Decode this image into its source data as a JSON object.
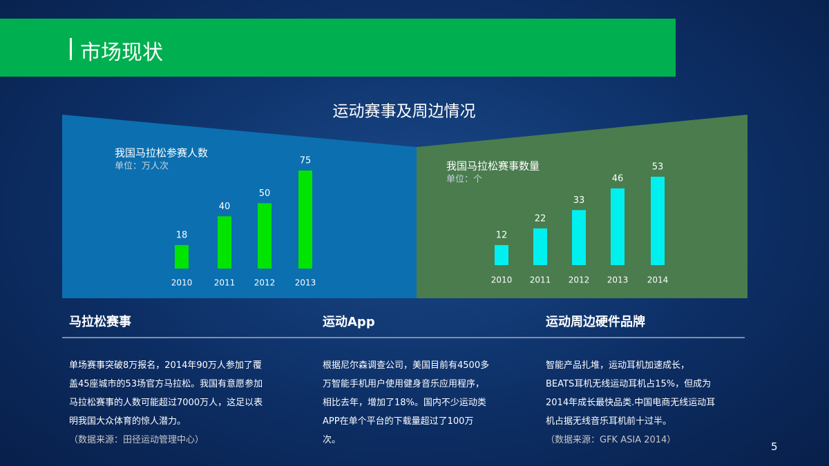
{
  "header": {
    "title": "市场现状"
  },
  "figure_title": "运动赛事及周边情况",
  "chart_data": [
    {
      "type": "bar",
      "title": "我国马拉松参赛人数",
      "subtitle": "单位：万人次",
      "categories": [
        "2010",
        "2011",
        "2012",
        "2013"
      ],
      "values": [
        18,
        40,
        50,
        75
      ],
      "color": "#00e400"
    },
    {
      "type": "bar",
      "title": "我国马拉松赛事数量",
      "subtitle": "单位：个",
      "categories": [
        "2010",
        "2011",
        "2012",
        "2013",
        "2014"
      ],
      "values": [
        12,
        22,
        33,
        46,
        53
      ],
      "color": "#00f0f0"
    }
  ],
  "sections": [
    {
      "heading": "马拉松赛事",
      "lines": [
        "单场赛事突破8万报名，2014年90万人参加了覆",
        "盖45座城市的53场官方马拉松。我国有意愿参加",
        "马拉松赛事的人数可能超过7000万人，这足以表",
        "明我国大众体育的惊人潜力。"
      ],
      "source": "（数据来源：田径运动管理中心）"
    },
    {
      "heading": "运动App",
      "lines": [
        "根据尼尔森调查公司，美国目前有4500多",
        "万智能手机用户使用健身音乐应用程序，",
        "相比去年，增加了18%。国内不少运动类",
        "APP在单个平台的下载量超过了100万",
        "次。"
      ]
    },
    {
      "heading": "运动周边硬件品牌",
      "lines": [
        "智能产品扎堆，运动耳机加速成长，",
        "BEATS耳机无线运动耳机占15%，但成为",
        "2014年成长最快品类.中国电商无线运动耳",
        "机占据无线音乐耳机前十过半。"
      ],
      "source": "（数据来源：GFK ASIA 2014）"
    }
  ],
  "page_number": "5"
}
